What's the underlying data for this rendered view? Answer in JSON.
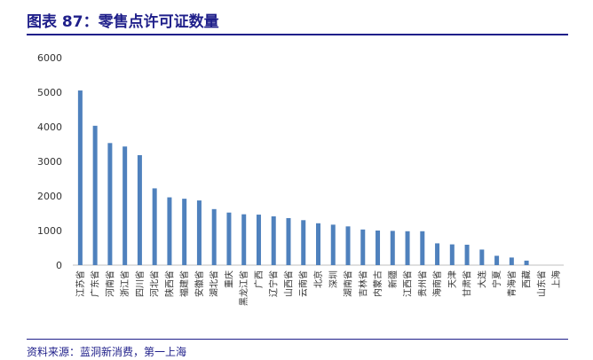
{
  "header": {
    "title": "图表 87：零售点许可证数量"
  },
  "footer": {
    "source": "资料来源：蓝洞新消费，第一上海"
  },
  "colors": {
    "bar": "#4f81bd",
    "accent": "#1f1f8a"
  },
  "chart_data": {
    "type": "bar",
    "title": "",
    "xlabel": "",
    "ylabel": "",
    "ylim": [
      0,
      6000
    ],
    "yticks": [
      0,
      1000,
      2000,
      3000,
      4000,
      5000,
      6000
    ],
    "grid": false,
    "legend": "none",
    "categories": [
      "江苏省",
      "广东省",
      "河南省",
      "浙江省",
      "四川省",
      "河北省",
      "陕西省",
      "福建省",
      "安徽省",
      "湖北省",
      "重庆",
      "黑龙江省",
      "广西",
      "辽宁省",
      "山西省",
      "云南省",
      "北京",
      "深圳",
      "湖南省",
      "吉林省",
      "内蒙古",
      "新疆",
      "江西省",
      "贵州省",
      "海南省",
      "天津",
      "甘肃省",
      "大连",
      "宁夏",
      "青海省",
      "西藏",
      "山东省",
      "上海"
    ],
    "values": [
      5050,
      4030,
      3530,
      3430,
      3180,
      2220,
      1960,
      1920,
      1870,
      1620,
      1520,
      1470,
      1460,
      1410,
      1360,
      1300,
      1210,
      1170,
      1120,
      1030,
      1000,
      990,
      980,
      980,
      630,
      600,
      590,
      450,
      270,
      220,
      130,
      0,
      0
    ]
  }
}
